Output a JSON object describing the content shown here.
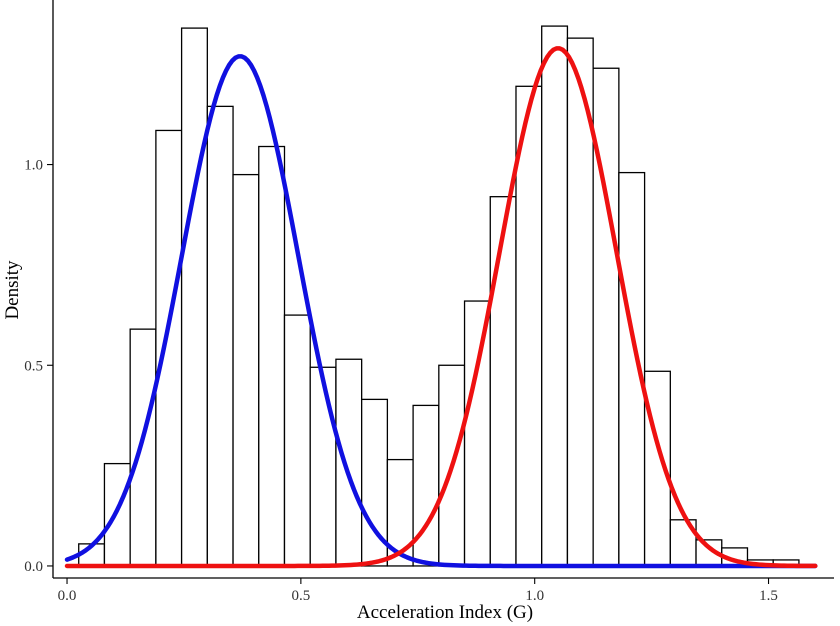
{
  "chart_data": {
    "type": "histogram",
    "xlabel": "Acceleration Index (G)",
    "ylabel": "Density",
    "xlim": [
      -0.03,
      1.64
    ],
    "ylim": [
      -0.03,
      1.41
    ],
    "x_ticks": [
      0.0,
      0.5,
      1.0,
      1.5
    ],
    "x_tick_labels": [
      "0.0",
      "0.5",
      "1.0",
      "1.5"
    ],
    "y_ticks": [
      0.0,
      0.5,
      1.0
    ],
    "y_tick_labels": [
      "0.0",
      "0.5",
      "1.0"
    ],
    "grid": false,
    "bin_width": 0.055,
    "bars": [
      {
        "x0": 0.025,
        "density": 0.055
      },
      {
        "x0": 0.08,
        "density": 0.255
      },
      {
        "x0": 0.135,
        "density": 0.59
      },
      {
        "x0": 0.19,
        "density": 1.085
      },
      {
        "x0": 0.245,
        "density": 1.34
      },
      {
        "x0": 0.3,
        "density": 1.145
      },
      {
        "x0": 0.355,
        "density": 0.975
      },
      {
        "x0": 0.41,
        "density": 1.045
      },
      {
        "x0": 0.465,
        "density": 0.625
      },
      {
        "x0": 0.52,
        "density": 0.495
      },
      {
        "x0": 0.575,
        "density": 0.515
      },
      {
        "x0": 0.63,
        "density": 0.415
      },
      {
        "x0": 0.685,
        "density": 0.265
      },
      {
        "x0": 0.74,
        "density": 0.4
      },
      {
        "x0": 0.795,
        "density": 0.5
      },
      {
        "x0": 0.85,
        "density": 0.66
      },
      {
        "x0": 0.905,
        "density": 0.92
      },
      {
        "x0": 0.96,
        "density": 1.195
      },
      {
        "x0": 1.015,
        "density": 1.345
      },
      {
        "x0": 1.07,
        "density": 1.315
      },
      {
        "x0": 1.125,
        "density": 1.24
      },
      {
        "x0": 1.18,
        "density": 0.98
      },
      {
        "x0": 1.235,
        "density": 0.485
      },
      {
        "x0": 1.29,
        "density": 0.115
      },
      {
        "x0": 1.345,
        "density": 0.065
      },
      {
        "x0": 1.4,
        "density": 0.045
      },
      {
        "x0": 1.455,
        "density": 0.015
      },
      {
        "x0": 1.51,
        "density": 0.015
      }
    ],
    "curves": [
      {
        "color": "#1010e0",
        "mean": 0.37,
        "sd": 0.125,
        "peak": 1.27,
        "x_range": [
          0.0,
          1.6
        ]
      },
      {
        "color": "#ee1111",
        "mean": 1.05,
        "sd": 0.125,
        "peak": 1.29,
        "x_range": [
          0.0,
          1.6
        ]
      }
    ]
  }
}
